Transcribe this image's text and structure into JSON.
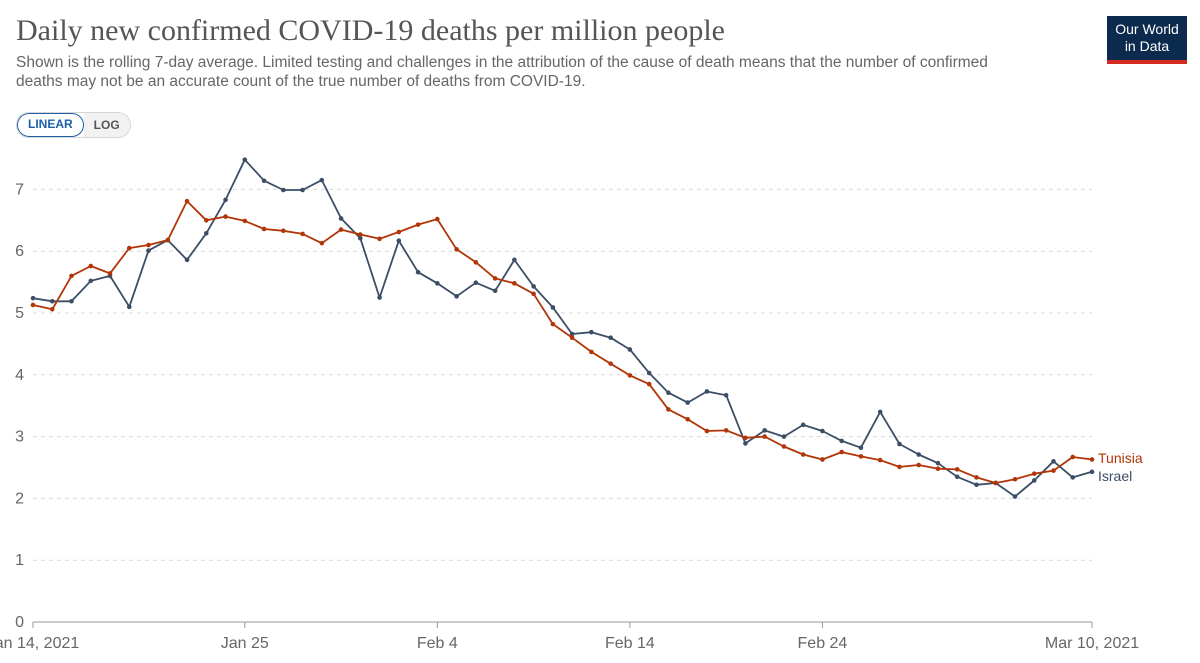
{
  "header": {
    "title": "Daily new confirmed COVID-19 deaths per million people",
    "subtitle": "Shown is the rolling 7-day average. Limited testing and challenges in the attribution of the cause of death means that the number of confirmed deaths may not be an accurate count of the true number of deaths from COVID-19.",
    "logo_line1": "Our World",
    "logo_line2": "in Data"
  },
  "scale_toggle": {
    "linear_label": "LINEAR",
    "log_label": "LOG",
    "selected": "LINEAR"
  },
  "chart_data": {
    "type": "line",
    "title": "Daily new confirmed COVID-19 deaths per million people",
    "x_start": "2021-01-14",
    "x_end": "2021-03-10",
    "x_tick_labels": [
      "Jan 14, 2021",
      "Jan 25",
      "Feb 4",
      "Feb 14",
      "Feb 24",
      "Mar 10, 2021"
    ],
    "y_ticks": [
      0,
      1,
      2,
      3,
      4,
      5,
      6,
      7
    ],
    "ylim": [
      0,
      7.6
    ],
    "grid": "horizontal dashed",
    "legend": "end-of-line labels",
    "series": [
      {
        "name": "Israel",
        "color": "#3c4e66",
        "values": [
          5.24,
          5.19,
          5.19,
          5.52,
          5.6,
          5.1,
          6.01,
          6.18,
          5.86,
          6.29,
          6.83,
          7.48,
          7.14,
          6.99,
          6.99,
          7.15,
          6.53,
          6.21,
          5.25,
          6.17,
          5.66,
          5.48,
          5.27,
          5.49,
          5.36,
          5.86,
          5.43,
          5.09,
          4.66,
          4.69,
          4.6,
          4.41,
          4.03,
          3.71,
          3.55,
          3.73,
          3.67,
          2.89,
          3.1,
          3.0,
          3.19,
          3.09,
          2.93,
          2.82,
          3.4,
          2.88,
          2.71,
          2.57,
          2.35,
          2.22,
          2.25,
          2.03,
          2.29,
          2.6,
          2.34,
          2.43
        ]
      },
      {
        "name": "Tunisia",
        "color": "#b13507",
        "values": [
          5.13,
          5.06,
          5.6,
          5.76,
          5.64,
          6.05,
          6.1,
          6.18,
          6.81,
          6.5,
          6.56,
          6.49,
          6.36,
          6.33,
          6.28,
          6.13,
          6.35,
          6.27,
          6.2,
          6.31,
          6.43,
          6.52,
          6.03,
          5.82,
          5.56,
          5.48,
          5.31,
          4.82,
          4.6,
          4.37,
          4.18,
          3.99,
          3.85,
          3.44,
          3.28,
          3.09,
          3.1,
          2.98,
          3.0,
          2.84,
          2.71,
          2.63,
          2.75,
          2.68,
          2.62,
          2.51,
          2.54,
          2.48,
          2.47,
          2.34,
          2.25,
          2.31,
          2.4,
          2.45,
          2.67,
          2.63
        ]
      }
    ]
  }
}
